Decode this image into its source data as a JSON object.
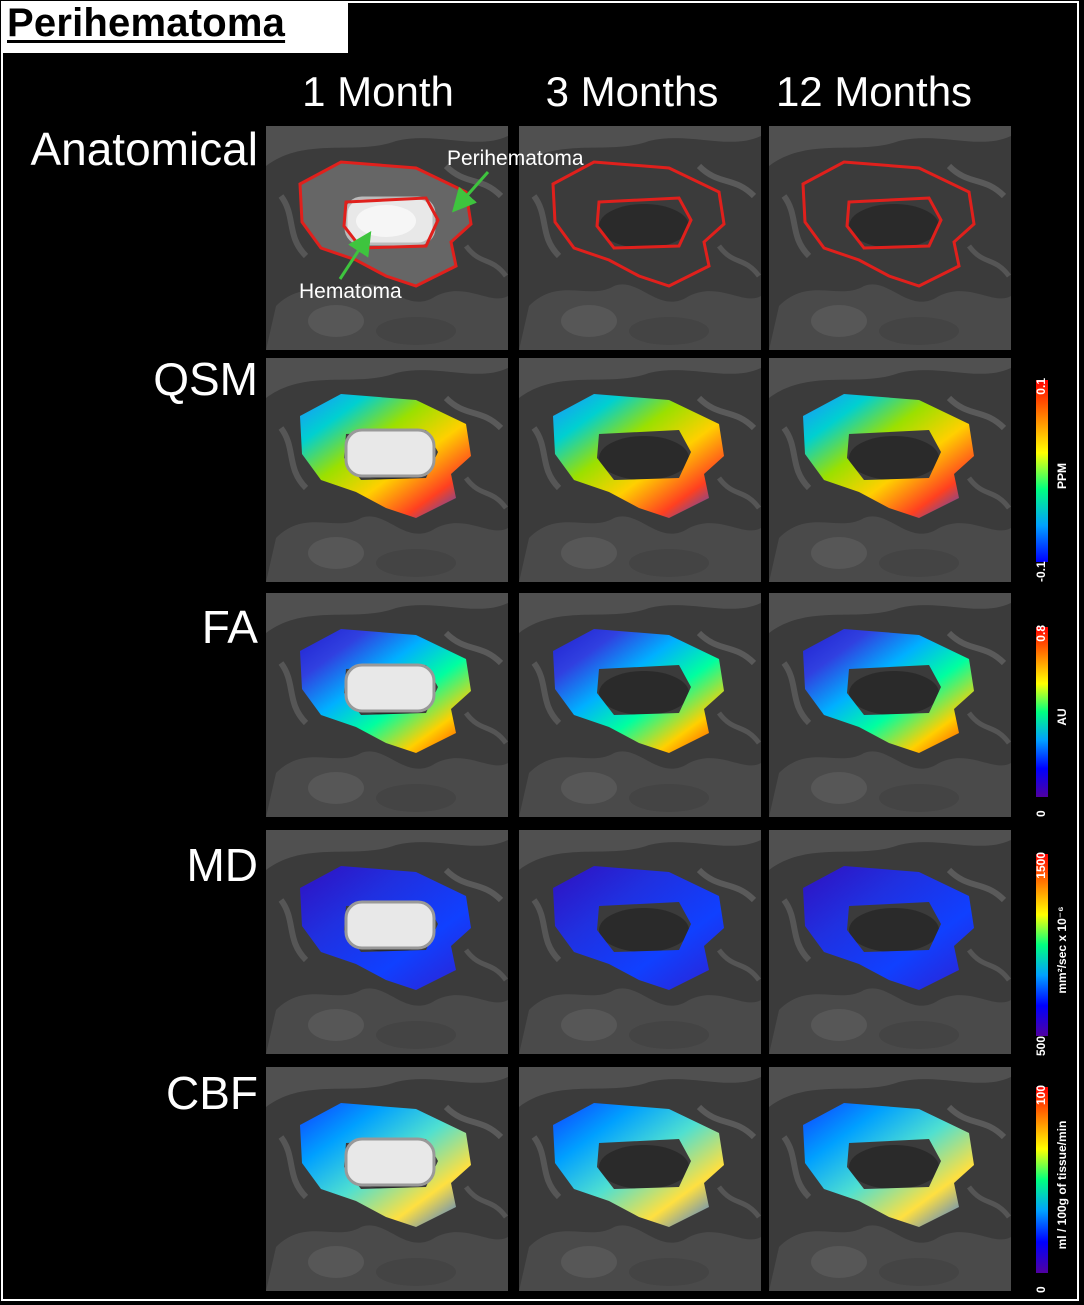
{
  "figure": {
    "title": "Perihematoma",
    "columns": [
      "1 Month",
      "3 Months",
      "12 Months"
    ],
    "rows": [
      "Anatomical",
      "QSM",
      "FA",
      "MD",
      "CBF"
    ],
    "annotations": {
      "perihematoma": "Perihematoma",
      "hematoma": "Hematoma"
    },
    "colorbars": [
      {
        "row": "QSM",
        "max": "0.1",
        "min": "-0.1",
        "unit": "PPM"
      },
      {
        "row": "FA",
        "max": "0.8",
        "min": "0",
        "unit": "AU"
      },
      {
        "row": "MD",
        "max": "1500",
        "min": "500",
        "unit": "mm²/sec x 10⁻⁶"
      },
      {
        "row": "CBF",
        "max": "100",
        "min": "0",
        "unit": "ml / 100g of tissue/min"
      }
    ],
    "colors": {
      "roi_outline": "#e0201c",
      "arrow": "#3ec43e",
      "background": "#000000",
      "text": "#ffffff"
    }
  }
}
